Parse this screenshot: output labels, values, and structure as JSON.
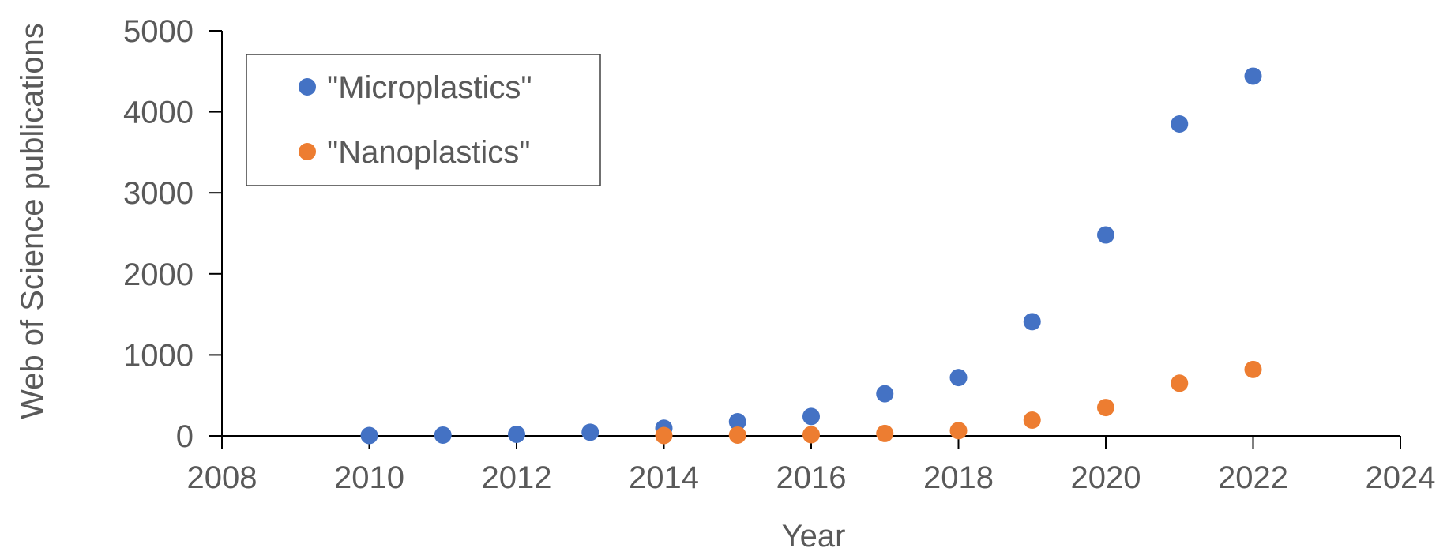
{
  "chart_data": {
    "type": "scatter",
    "title": "",
    "xlabel": "Year",
    "ylabel": "Web of Science publications",
    "xlim": [
      2008,
      2024
    ],
    "ylim": [
      0,
      5000
    ],
    "xticks": [
      2008,
      2010,
      2012,
      2014,
      2016,
      2018,
      2020,
      2022,
      2024
    ],
    "yticks": [
      0,
      1000,
      2000,
      3000,
      4000,
      5000
    ],
    "grid": false,
    "legend_position": "top-left",
    "series": [
      {
        "name": "\"Microplastics\"",
        "color": "#4472C4",
        "points": [
          {
            "x": 2010,
            "y": 5
          },
          {
            "x": 2011,
            "y": 10
          },
          {
            "x": 2012,
            "y": 20
          },
          {
            "x": 2013,
            "y": 45
          },
          {
            "x": 2014,
            "y": 95
          },
          {
            "x": 2015,
            "y": 175
          },
          {
            "x": 2016,
            "y": 240
          },
          {
            "x": 2017,
            "y": 520
          },
          {
            "x": 2018,
            "y": 720
          },
          {
            "x": 2019,
            "y": 1410
          },
          {
            "x": 2020,
            "y": 2480
          },
          {
            "x": 2021,
            "y": 3850
          },
          {
            "x": 2022,
            "y": 4440
          }
        ]
      },
      {
        "name": "\"Nanoplastics\"",
        "color": "#ED7D31",
        "points": [
          {
            "x": 2014,
            "y": 5
          },
          {
            "x": 2015,
            "y": 10
          },
          {
            "x": 2016,
            "y": 15
          },
          {
            "x": 2017,
            "y": 30
          },
          {
            "x": 2018,
            "y": 65
          },
          {
            "x": 2019,
            "y": 195
          },
          {
            "x": 2020,
            "y": 350
          },
          {
            "x": 2021,
            "y": 650
          },
          {
            "x": 2022,
            "y": 820
          }
        ]
      }
    ]
  }
}
